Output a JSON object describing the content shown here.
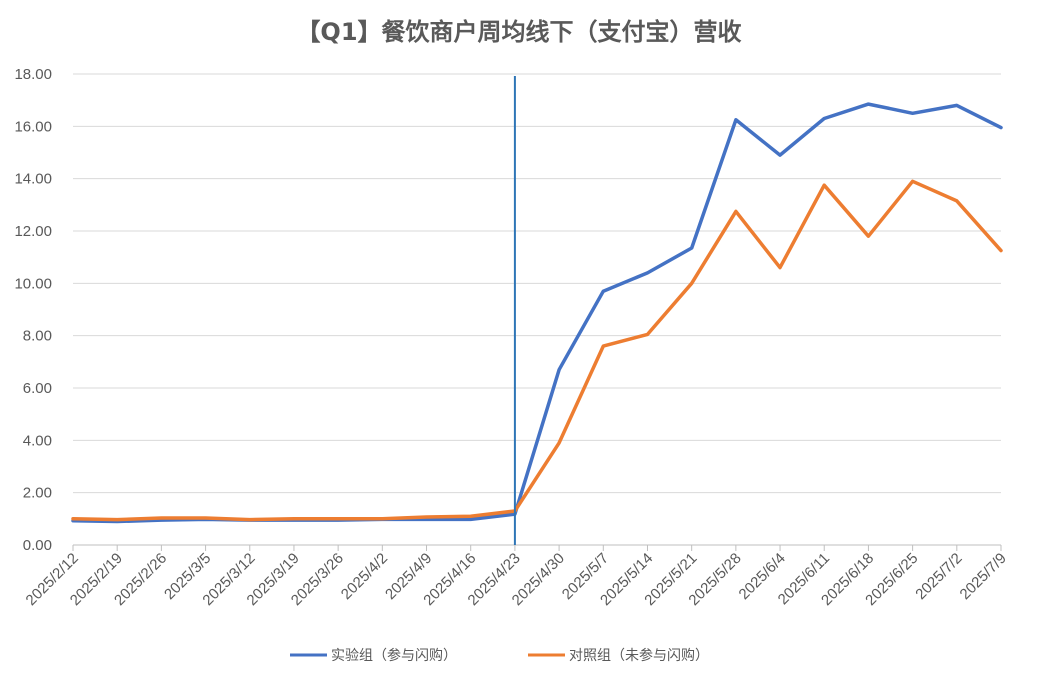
{
  "chart_data": {
    "type": "line",
    "title": "【Q1】餐饮商户周均线下（支付宝）营收",
    "xlabel": "",
    "ylabel": "",
    "ylim": [
      0,
      18
    ],
    "ytick_step": 2,
    "y_tick_labels": [
      "0.00",
      "2.00",
      "4.00",
      "6.00",
      "8.00",
      "10.00",
      "12.00",
      "14.00",
      "16.00",
      "18.00"
    ],
    "categories": [
      "2025/2/12",
      "2025/2/19",
      "2025/2/26",
      "2025/3/5",
      "2025/3/12",
      "2025/3/19",
      "2025/3/26",
      "2025/4/2",
      "2025/4/9",
      "2025/4/16",
      "2025/4/23",
      "2025/4/30",
      "2025/5/7",
      "2025/5/14",
      "2025/5/21",
      "2025/5/28",
      "2025/6/4",
      "2025/6/11",
      "2025/6/18",
      "2025/6/25",
      "2025/7/2",
      "2025/7/9"
    ],
    "series": [
      {
        "name": "实验组（参与闪购）",
        "color": "#4472c4",
        "values": [
          0.93,
          0.9,
          0.95,
          0.98,
          0.95,
          0.95,
          0.95,
          0.98,
          0.98,
          0.98,
          1.18,
          6.7,
          9.7,
          10.4,
          11.35,
          16.25,
          14.9,
          16.3,
          16.85,
          16.5,
          16.8,
          15.95
        ]
      },
      {
        "name": "对照组（未参与闪购）",
        "color": "#ed7d31",
        "values": [
          1.0,
          0.97,
          1.03,
          1.03,
          0.97,
          1.0,
          1.0,
          1.0,
          1.07,
          1.1,
          1.3,
          3.9,
          7.6,
          8.05,
          10.0,
          12.75,
          10.6,
          13.75,
          11.8,
          13.9,
          13.15,
          11.25
        ]
      }
    ],
    "marker_line": {
      "category": "2025/4/23",
      "color": "#2e75b6"
    },
    "grid": true,
    "legend_position": "bottom"
  }
}
